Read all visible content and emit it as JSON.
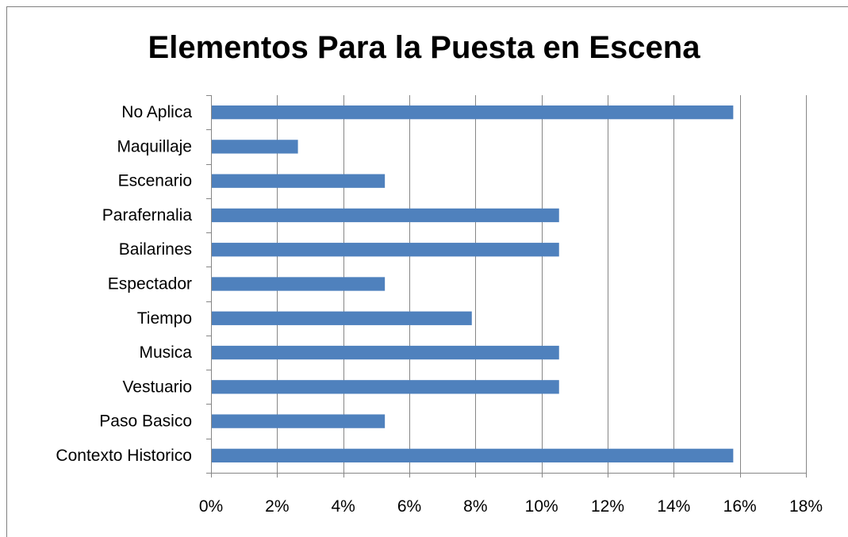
{
  "chart_data": {
    "type": "bar",
    "orientation": "horizontal",
    "title": "Elementos Para la Puesta en Escena",
    "xlabel": "",
    "ylabel": "",
    "categories": [
      "Contexto Historico",
      "Paso Basico",
      "Vestuario",
      "Musica",
      "Tiempo",
      "Espectador",
      "Bailarines",
      "Parafernalia",
      "Escenario",
      "Maquillaje",
      "No Aplica"
    ],
    "values": [
      15.8,
      5.26,
      10.53,
      10.53,
      7.89,
      5.26,
      10.53,
      10.53,
      5.26,
      2.63,
      15.8
    ],
    "xlim": [
      0,
      18
    ],
    "x_ticks": [
      0,
      2,
      4,
      6,
      8,
      10,
      12,
      14,
      16,
      18
    ],
    "x_tick_labels": [
      "0%",
      "2%",
      "4%",
      "6%",
      "8%",
      "10%",
      "12%",
      "14%",
      "16%",
      "18%"
    ],
    "grid": "vertical",
    "legend": "none",
    "colors": {
      "bar": "#4f81bd",
      "grid": "#868686",
      "axis": "#868686"
    }
  }
}
